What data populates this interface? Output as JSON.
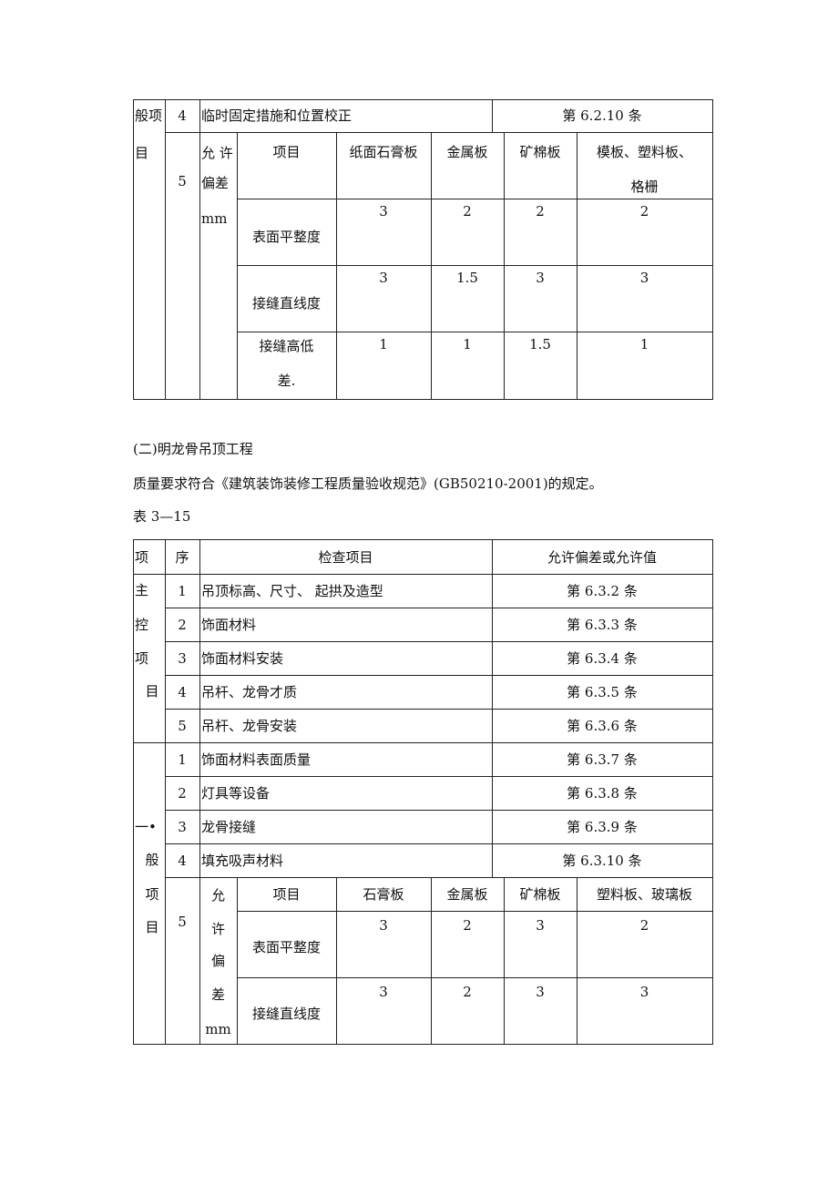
{
  "table1": {
    "section_label": [
      "般项",
      "目"
    ],
    "row4": {
      "seq": "4",
      "item": "临时固定措施和位置校正",
      "clause": "第 6.2.10 条"
    },
    "row5": {
      "seq": "5",
      "group_label": [
        "允 许",
        "偏差",
        "mm"
      ],
      "header": [
        "项目",
        "纸面石膏板",
        "金属板",
        "矿棉板",
        "模板、塑料板、",
        "格栅"
      ],
      "rows": [
        {
          "label": "表面平整度",
          "values": [
            "3",
            "2",
            "2",
            "2"
          ]
        },
        {
          "label": "接缝直线度",
          "values": [
            "3",
            "1.5",
            "3",
            "3"
          ]
        },
        {
          "label": "接缝高低",
          "label2": "差.",
          "values": [
            "1",
            "1",
            "1.5",
            "1"
          ]
        }
      ]
    }
  },
  "text": {
    "heading": "(二)明龙骨吊顶工程",
    "requirement": "质量要求符合《建筑装饰装修工程质量验收规范》(GB50210-2001)的规定。",
    "table_no": "表 3—15"
  },
  "table2": {
    "header": [
      "项",
      "序",
      "检查项目",
      "允许偏差或允许值"
    ],
    "main_label": [
      "主",
      "控",
      "项",
      "目"
    ],
    "main_rows": [
      {
        "seq": "1",
        "item": " 吊顶标高、尺寸、   起拱及造型",
        "clause": "第 6.3.2 条"
      },
      {
        "seq": "2",
        "item": "饰面材料",
        "clause": "第 6.3.3 条"
      },
      {
        "seq": "3",
        "item": "饰面材料安装",
        "clause": "第 6.3.4 条"
      },
      {
        "seq": "4",
        "item": "吊杆、龙骨才质",
        "clause": "第 6.3.5 条"
      },
      {
        "seq": "5",
        "item": "吊杆、龙骨安装",
        "clause": "第 6.3.6 条"
      }
    ],
    "general_label": [
      "一•",
      "般",
      "项",
      "目"
    ],
    "general_rows": [
      {
        "seq": "1",
        "item": "饰面材料表面质量",
        "clause": "第 6.3.7 条"
      },
      {
        "seq": "2",
        "item": "灯具等设备",
        "clause": "第 6.3.8 条"
      },
      {
        "seq": "3",
        "item": "龙骨接缝",
        "clause": "第 6.3.9 条"
      },
      {
        "seq": "4",
        "item": "填充吸声材料",
        "clause": "第 6.3.10 条"
      }
    ],
    "row5": {
      "seq": "5",
      "group_label": [
        "允",
        "许",
        "偏",
        "差",
        "mm"
      ],
      "header": [
        "项目",
        "石膏板",
        "金属板",
        "矿棉板",
        "塑料板、玻璃板"
      ],
      "rows": [
        {
          "label": "表面平整度",
          "values": [
            "3",
            "2",
            "3",
            "2"
          ]
        },
        {
          "label": "接缝直线度",
          "values": [
            "3",
            "2",
            "3",
            "3"
          ]
        }
      ]
    }
  }
}
